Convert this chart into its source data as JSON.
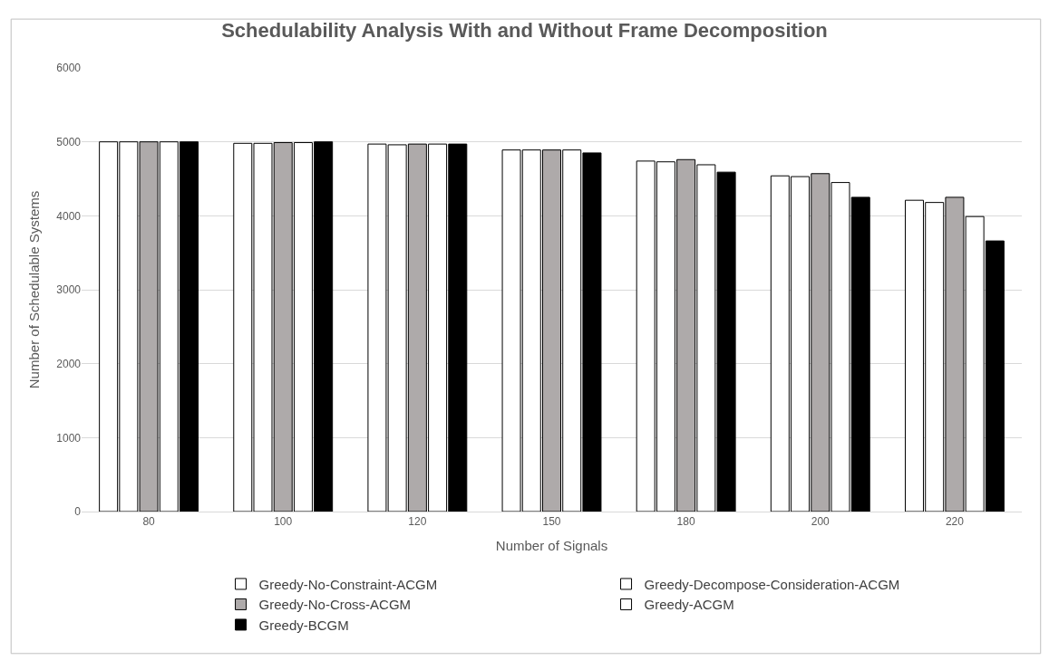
{
  "chart_data": {
    "type": "bar",
    "title": "Schedulability Analysis With and Without Frame Decomposition",
    "xlabel": "Number of Signals",
    "ylabel": "Number of Schedulable Systems",
    "categories": [
      "80",
      "100",
      "120",
      "150",
      "180",
      "200",
      "220"
    ],
    "series": [
      {
        "name": "Greedy-No-Constraint-ACGM",
        "color": "#ffffff",
        "values": [
          5000,
          4980,
          4970,
          4890,
          4740,
          4540,
          4210
        ]
      },
      {
        "name": "Greedy-Decompose-Consideration-ACGM",
        "color": "#ffffff",
        "values": [
          5000,
          4980,
          4960,
          4890,
          4730,
          4530,
          4180
        ]
      },
      {
        "name": "Greedy-No-Cross-ACGM",
        "color": "#aeaaaa",
        "values": [
          5000,
          4990,
          4970,
          4890,
          4760,
          4570,
          4250
        ]
      },
      {
        "name": "Greedy-ACGM",
        "color": "#ffffff",
        "values": [
          5000,
          4990,
          4970,
          4890,
          4690,
          4450,
          3990
        ]
      },
      {
        "name": "Greedy-BCGM",
        "color": "#000000",
        "values": [
          5000,
          5000,
          4970,
          4850,
          4590,
          4250,
          3660
        ]
      }
    ],
    "ylim": [
      0,
      6000
    ],
    "yticks": [
      0,
      1000,
      2000,
      3000,
      4000,
      5000,
      6000
    ],
    "grid": "y",
    "legend": "bottom"
  }
}
